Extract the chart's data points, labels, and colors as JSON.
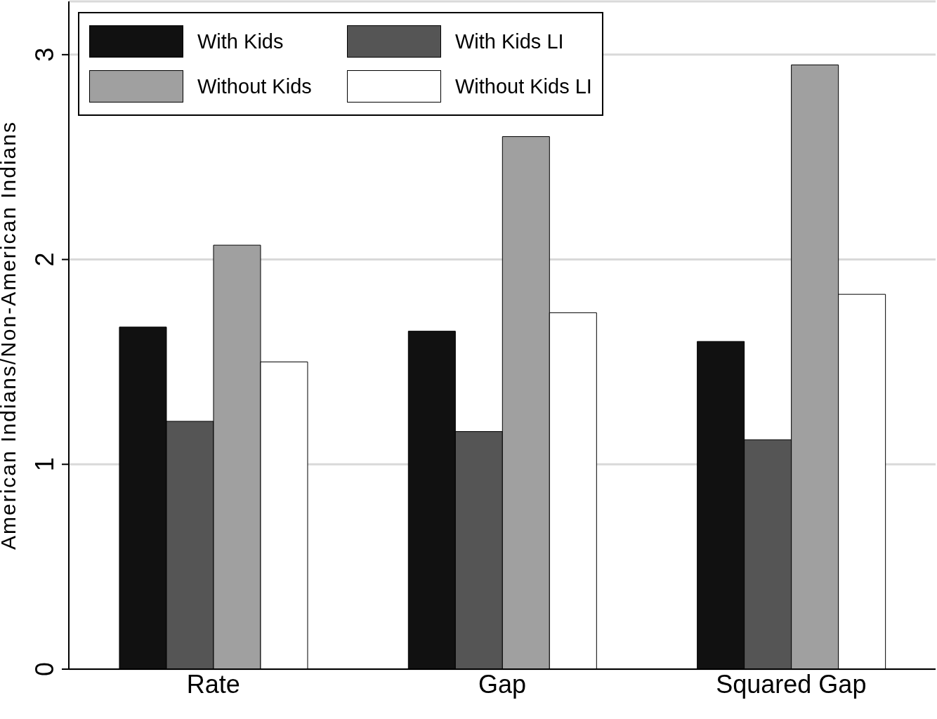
{
  "chart_data": {
    "type": "bar",
    "ylabel": "American Indians/Non-American Indians",
    "categories": [
      "Rate",
      "Gap",
      "Squared Gap"
    ],
    "series": [
      {
        "name": "With Kids",
        "color": "#111111",
        "values": [
          1.67,
          1.65,
          1.6
        ]
      },
      {
        "name": "With Kids LI",
        "color": "#555555",
        "values": [
          1.21,
          1.16,
          1.12
        ]
      },
      {
        "name": "Without Kids",
        "color": "#a0a0a0",
        "values": [
          2.07,
          2.6,
          2.95
        ]
      },
      {
        "name": "Without Kids LI",
        "color": "#ffffff",
        "values": [
          1.5,
          1.74,
          1.83
        ]
      }
    ],
    "ylim": [
      0,
      3.26
    ],
    "yticks": [
      0,
      1,
      2,
      3
    ],
    "grid": "y",
    "legend": "top left"
  }
}
